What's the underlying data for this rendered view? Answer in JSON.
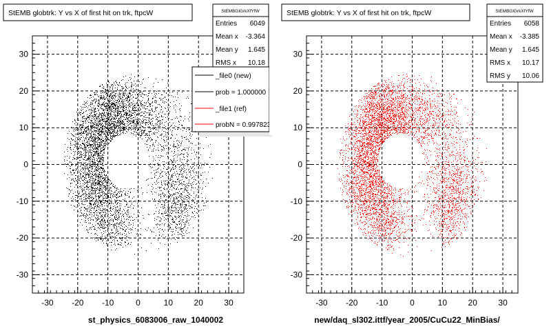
{
  "colors": {
    "series_black": "#000000",
    "series_red": "#ff0000",
    "frame": "#000000",
    "background": "#ffffff"
  },
  "chart_data": [
    {
      "type": "scatter",
      "title": "StEMB globtrk: Y vs X of first hit on trk, ftpcW",
      "xlabel": "st_physics_6083006_raw_1040002",
      "ylabel": "",
      "xlim": [
        -35,
        35
      ],
      "ylim": [
        -35,
        35
      ],
      "xticks": [
        -30,
        -20,
        -10,
        0,
        10,
        20,
        30
      ],
      "yticks": [
        -30,
        -20,
        -10,
        0,
        10,
        20,
        30
      ],
      "grid": true,
      "series_color": "#000000",
      "stats": {
        "name": "StEMBGlGrkXfYfW",
        "rows": [
          {
            "label": "Entries",
            "value": "6049"
          },
          {
            "label": "Mean x",
            "value": "-3.364"
          },
          {
            "label": "Mean y",
            "value": "1.645"
          },
          {
            "label": "RMS x",
            "value": "10.18"
          }
        ]
      },
      "legend": {
        "position": "top-right",
        "entries": [
          {
            "label": "_file0 (new)",
            "color": "#000000"
          },
          {
            "label": "prob = 1.000000",
            "color": "#000000"
          },
          {
            "label": "_file1 (ref)",
            "color": "#ff0000"
          },
          {
            "label": "probN = 0.997823",
            "color": "#ff0000"
          }
        ]
      },
      "distribution": {
        "description": "annular point cloud around origin with hole near (-4,1)",
        "clusters": [
          {
            "cx": -12,
            "cy": 8,
            "sx": 5,
            "sy": 8,
            "n": 1300
          },
          {
            "cx": -6,
            "cy": 14,
            "sx": 6,
            "sy": 5,
            "n": 900
          },
          {
            "cx": -12,
            "cy": -8,
            "sx": 5,
            "sy": 7,
            "n": 1000
          },
          {
            "cx": 13,
            "cy": -5,
            "sx": 5,
            "sy": 7,
            "n": 850
          },
          {
            "cx": 2,
            "cy": 12,
            "sx": 8,
            "sy": 5,
            "n": 700
          },
          {
            "cx": -16,
            "cy": 0,
            "sx": 4,
            "sy": 9,
            "n": 650
          },
          {
            "cx": -8,
            "cy": -17,
            "sx": 4,
            "sy": 3,
            "n": 300
          },
          {
            "cx": 12,
            "cy": -14,
            "sx": 3,
            "sy": 4,
            "n": 250
          }
        ],
        "hole": {
          "cx": -4,
          "cy": 1,
          "r": 7.5
        }
      }
    },
    {
      "type": "scatter",
      "title": "StEMB globtrk: Y vs X of first hit on trk, ftpcW",
      "xlabel": "new/daq_sl302.ittf/year_2005/CuCu22_MinBias/",
      "ylabel": "",
      "xlim": [
        -35,
        35
      ],
      "ylim": [
        -35,
        35
      ],
      "xticks": [
        -30,
        -20,
        -10,
        0,
        10,
        20,
        30
      ],
      "yticks": [
        -30,
        -20,
        -10,
        0,
        10,
        20,
        30
      ],
      "grid": true,
      "series_color": "#ff0000",
      "stats": {
        "name": "StEMBGlGrkXfYfW",
        "rows": [
          {
            "label": "Entries",
            "value": "6058"
          },
          {
            "label": "Mean x",
            "value": "-3.385"
          },
          {
            "label": "Mean y",
            "value": "1.645"
          },
          {
            "label": "RMS x",
            "value": "10.17"
          },
          {
            "label": "RMS y",
            "value": "10.06"
          }
        ]
      },
      "distribution": {
        "description": "annular point cloud around origin with hole near (-4,1)",
        "clusters": [
          {
            "cx": -12,
            "cy": 8,
            "sx": 5,
            "sy": 8,
            "n": 1300
          },
          {
            "cx": -6,
            "cy": 14,
            "sx": 6,
            "sy": 5,
            "n": 900
          },
          {
            "cx": -12,
            "cy": -8,
            "sx": 5,
            "sy": 7,
            "n": 1000
          },
          {
            "cx": 13,
            "cy": -5,
            "sx": 5,
            "sy": 7,
            "n": 850
          },
          {
            "cx": 2,
            "cy": 12,
            "sx": 8,
            "sy": 5,
            "n": 700
          },
          {
            "cx": -16,
            "cy": 0,
            "sx": 4,
            "sy": 9,
            "n": 650
          },
          {
            "cx": -8,
            "cy": -17,
            "sx": 4,
            "sy": 3,
            "n": 300
          },
          {
            "cx": 12,
            "cy": -14,
            "sx": 3,
            "sy": 4,
            "n": 250
          }
        ],
        "hole": {
          "cx": -4,
          "cy": 1,
          "r": 7.5
        }
      }
    }
  ]
}
